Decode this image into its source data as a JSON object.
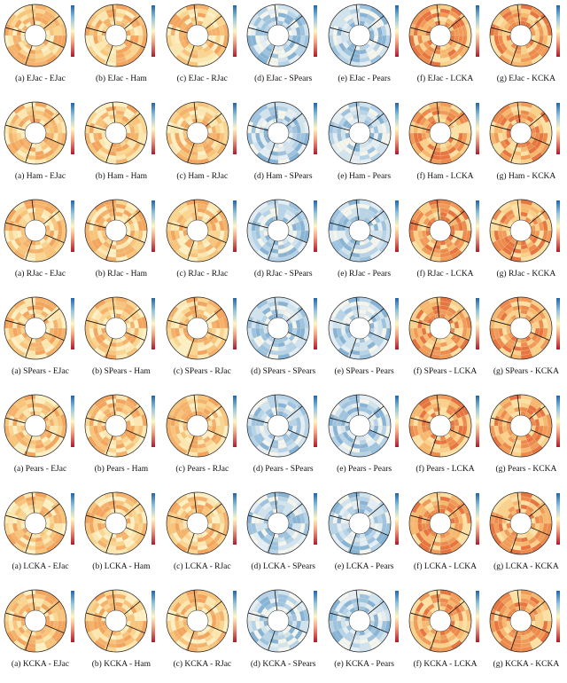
{
  "figure": {
    "captions": [
      [
        "(a) EJac - EJac",
        "(b) EJac - Ham",
        "(c) EJac - RJac",
        "(d) EJac - SPears",
        "(e) EJac - Pears",
        "(f) EJac - LCKA",
        "(g) EJac - KCKA"
      ],
      [
        "(a) Ham - EJac",
        "(b) Ham - Ham",
        "(c) Ham - RJac",
        "(d) Ham - SPears",
        "(e) Ham - Pears",
        "(f) Ham - LCKA",
        "(g) Ham - KCKA"
      ],
      [
        "(a) RJac - EJac",
        "(b) RJac - Ham",
        "(c) RJac - RJac",
        "(d) RJac - SPears",
        "(e) RJac - Pears",
        "(f) RJac - LCKA",
        "(g) RJac - KCKA"
      ],
      [
        "(a) SPears - EJac",
        "(b) SPears - Ham",
        "(c) SPears - RJac",
        "(d) SPears - SPears",
        "(e) SPears - Pears",
        "(f) SPears - LCKA",
        "(g) SPears - KCKA"
      ],
      [
        "(a) Pears - EJac",
        "(b) Pears - Ham",
        "(c) Pears - RJac",
        "(d) Pears - SPears",
        "(e) Pears - Pears",
        "(f) Pears - LCKA",
        "(g) Pears - KCKA"
      ],
      [
        "(a) LCKA - EJac",
        "(b) LCKA - Ham",
        "(c) LCKA - RJac",
        "(d) LCKA - SPears",
        "(e) LCKA - Pears",
        "(f) LCKA - LCKA",
        "(g) LCKA - KCKA"
      ],
      [
        "(a) KCKA - EJac",
        "(b) KCKA - Ham",
        "(c) KCKA - RJac",
        "(d) KCKA - SPears",
        "(e) KCKA - Pears",
        "(f) KCKA - LCKA",
        "(g) KCKA - KCKA"
      ]
    ]
  }
}
